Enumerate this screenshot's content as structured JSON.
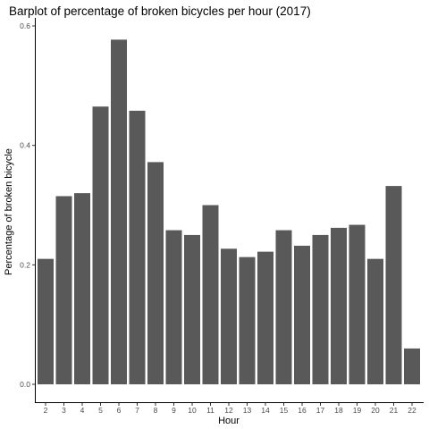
{
  "chart_data": {
    "type": "bar",
    "title": "Barplot of percentage of broken bicycles per hour (2017)",
    "xlabel": "Hour",
    "ylabel": "Percentage of  broken bicycle",
    "categories": [
      "2",
      "3",
      "4",
      "5",
      "6",
      "7",
      "8",
      "9",
      "10",
      "11",
      "12",
      "13",
      "14",
      "15",
      "16",
      "17",
      "18",
      "19",
      "20",
      "21",
      "22"
    ],
    "values": [
      0.21,
      0.315,
      0.32,
      0.465,
      0.577,
      0.458,
      0.372,
      0.258,
      0.25,
      0.3,
      0.227,
      0.213,
      0.222,
      0.258,
      0.232,
      0.25,
      0.262,
      0.267,
      0.21,
      0.332,
      0.06
    ],
    "ylim": [
      0,
      0.6
    ],
    "yticks": [
      0.0,
      0.2,
      0.4,
      0.6
    ],
    "ytick_labels": [
      "0.0",
      "0.2",
      "0.4",
      "0.6"
    ],
    "grid": false,
    "legend": "none",
    "bar_color": "#595959"
  }
}
